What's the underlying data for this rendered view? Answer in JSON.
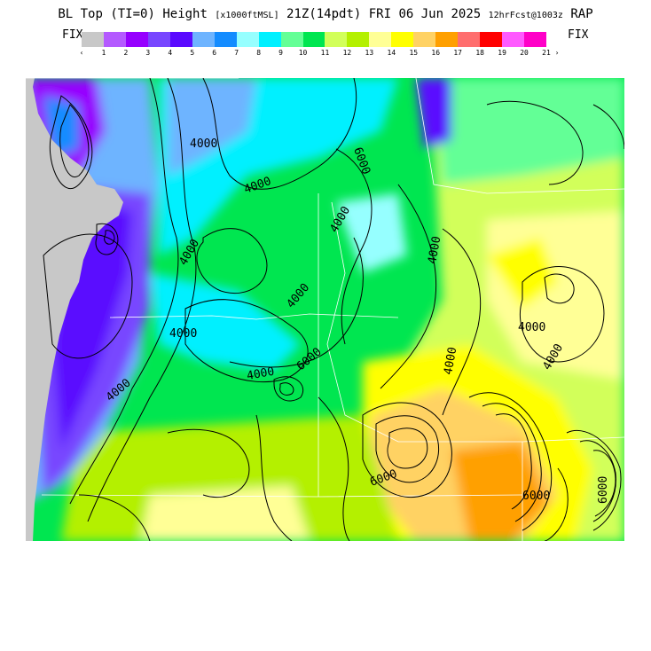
{
  "header": {
    "title_main": "BL Top (TI=0) Height",
    "title_units": "[x1000ftMSL]",
    "title_time": "21Z(14pdt) FRI 06 Jun 2025",
    "title_fcst": "12hrFcst@1003z",
    "title_model": "RAP"
  },
  "legend": {
    "fix_left": "FIX",
    "fix_right": "FIX",
    "arrow_left": "‹",
    "arrow_right": "›",
    "labels": [
      "1",
      "2",
      "3",
      "4",
      "5",
      "6",
      "7",
      "8",
      "9",
      "10",
      "11",
      "12",
      "13",
      "14",
      "15",
      "16",
      "17",
      "18",
      "19",
      "20",
      "21"
    ],
    "colors": [
      "#c8c8c8",
      "#b45aff",
      "#9600ff",
      "#7846ff",
      "#5a0aff",
      "#6eb4ff",
      "#148cff",
      "#96ffff",
      "#00f0ff",
      "#64ff96",
      "#00e650",
      "#d2ff5a",
      "#b4f000",
      "#ffff96",
      "#ffff00",
      "#ffd264",
      "#ffa000",
      "#ff6e6e",
      "#ff0000",
      "#ff5aff",
      "#ff00c8"
    ]
  },
  "map": {
    "contour_labels": [
      "4000",
      "4000",
      "4000",
      "4000",
      "4000",
      "4000",
      "4000",
      "4000",
      "4000",
      "4000",
      "4000",
      "4000",
      "6000",
      "6000",
      "6000",
      "6000",
      "6000"
    ],
    "colors": {
      "ocean": "#c8c8c8",
      "contour": "#000000",
      "border": "#ffffff"
    }
  }
}
